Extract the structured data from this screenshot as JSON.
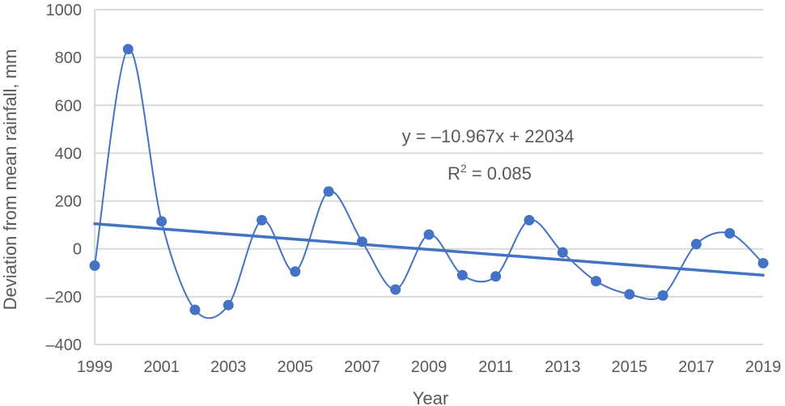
{
  "chart_data": {
    "type": "line",
    "x": [
      1999,
      2000,
      2001,
      2002,
      2003,
      2004,
      2005,
      2006,
      2007,
      2008,
      2009,
      2010,
      2011,
      2012,
      2013,
      2014,
      2015,
      2016,
      2017,
      2018,
      2019
    ],
    "series": [
      {
        "values": [
          -70,
          835,
          115,
          -255,
          -235,
          120,
          -95,
          240,
          30,
          -170,
          60,
          -110,
          -115,
          120,
          -15,
          -135,
          -190,
          -195,
          20,
          65,
          -60
        ]
      }
    ],
    "trendline": {
      "type": "linear",
      "start": [
        1999,
        105
      ],
      "end": [
        2019,
        -110
      ],
      "equation": "y = –10.967x + 22034",
      "r2_prefix": "R",
      "r2_sup": "2",
      "r2_value": " = 0.085"
    },
    "xticks": [
      "1999",
      "2001",
      "2003",
      "2005",
      "2007",
      "2009",
      "2011",
      "2013",
      "2015",
      "2017",
      "2019"
    ],
    "yticks": [
      "1000",
      "800",
      "600",
      "400",
      "200",
      "0",
      "–200",
      "–400"
    ],
    "xlim": [
      1999,
      2019
    ],
    "ylim": [
      -400,
      1000
    ],
    "xlabel": "Year",
    "ylabel": "Deviation from mean rainfall, mm",
    "grid": "horizontal",
    "colors": {
      "series": "#4472c4",
      "grid": "#d9d9d9",
      "text": "#595959"
    }
  }
}
